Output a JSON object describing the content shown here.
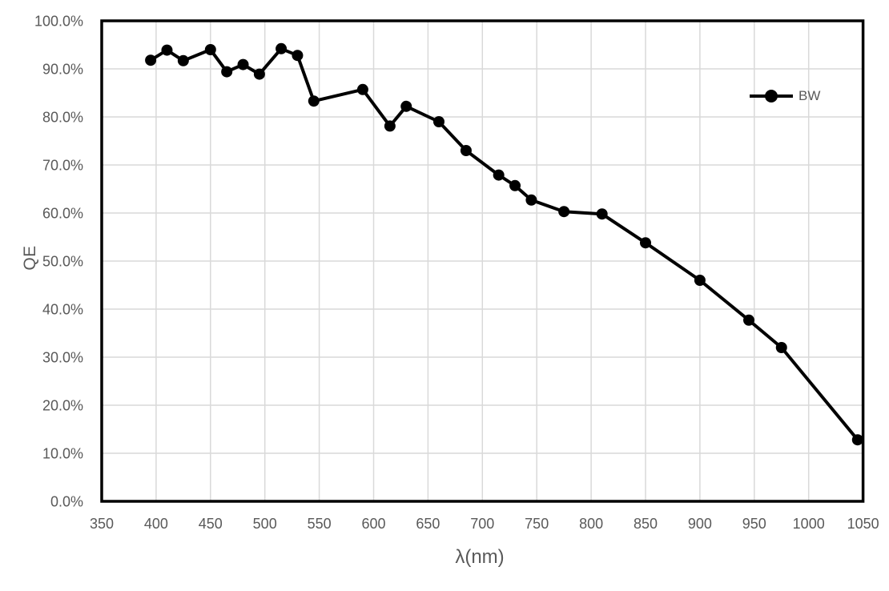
{
  "chart_data": {
    "type": "line",
    "title": "",
    "xlabel": "λ(nm)",
    "ylabel": "QE",
    "xlim": [
      350,
      1050
    ],
    "ylim": [
      0,
      100
    ],
    "grid": true,
    "legend_position": "inside-right",
    "x_ticks": [
      350,
      400,
      450,
      500,
      550,
      600,
      650,
      700,
      750,
      800,
      850,
      900,
      950,
      1000,
      1050
    ],
    "x_tick_labels": [
      "350",
      "400",
      "450",
      "500",
      "550",
      "600",
      "650",
      "700",
      "750",
      "800",
      "850",
      "900",
      "950",
      "1000",
      "1050"
    ],
    "y_ticks": [
      0,
      10,
      20,
      30,
      40,
      50,
      60,
      70,
      80,
      90,
      100
    ],
    "y_tick_labels": [
      "0.0%",
      "10.0%",
      "20.0%",
      "30.0%",
      "40.0%",
      "50.0%",
      "60.0%",
      "70.0%",
      "80.0%",
      "90.0%",
      "100.0%"
    ],
    "x": [
      395,
      410,
      425,
      450,
      465,
      480,
      495,
      515,
      530,
      545,
      590,
      615,
      630,
      660,
      685,
      715,
      730,
      745,
      775,
      810,
      850,
      900,
      945,
      975,
      1045
    ],
    "series": [
      {
        "name": "BW",
        "color": "#000000",
        "values": [
          91.8,
          93.9,
          91.7,
          94.0,
          89.4,
          90.9,
          88.9,
          94.2,
          92.8,
          83.3,
          85.7,
          78.1,
          82.2,
          79.0,
          73.0,
          67.9,
          65.7,
          62.7,
          60.3,
          59.8,
          53.8,
          46.0,
          37.7,
          32.0,
          12.8
        ]
      }
    ],
    "colors": {
      "grid": "#d9d9d9",
      "tick_labels": "#595959",
      "axis_titles": "#595959",
      "plot_border": "#000000",
      "background": "#ffffff"
    }
  }
}
